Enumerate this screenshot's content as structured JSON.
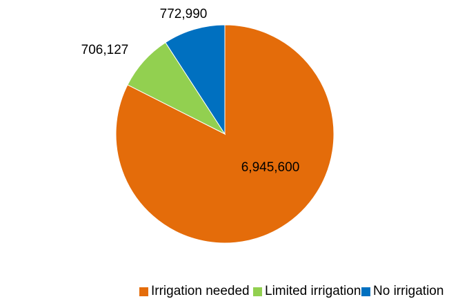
{
  "chart_data": {
    "type": "pie",
    "title": "",
    "slices": [
      {
        "label": "Irrigation needed",
        "value": 6945600,
        "display": "6,945,600",
        "color": "#E46C0A"
      },
      {
        "label": "Limited irrigation",
        "value": 706127,
        "display": "706,127",
        "color": "#92D050"
      },
      {
        "label": "No irrigation",
        "value": 772990,
        "display": "772,990",
        "color": "#0070C0"
      }
    ],
    "start_angle_deg": 0,
    "direction": "clockwise",
    "legend_position": "bottom"
  }
}
